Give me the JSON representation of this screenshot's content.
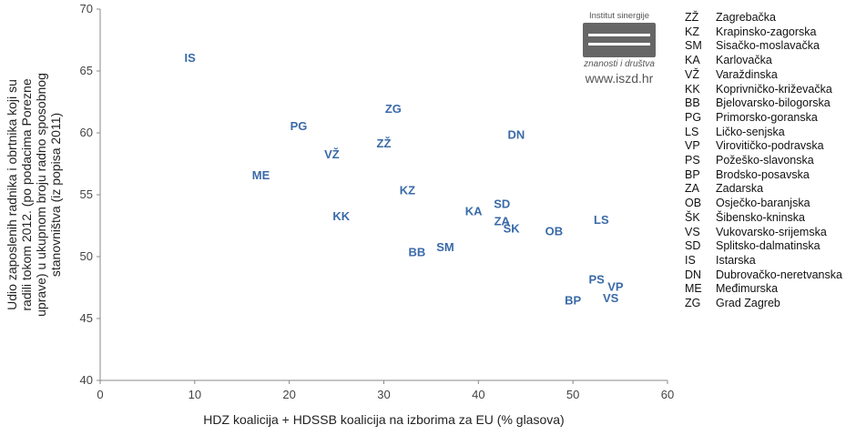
{
  "chart_data": {
    "type": "scatter",
    "xlabel": "HDZ koalicija + HDSSB koalicija na izborima za EU (% glasova)",
    "ylabel": "Udio zaposlenih radnika i obrtnika koji su radili tokom 2012. (po podacima Porezne uprave) u ukupnom broju radno sposobnog stanovništva (iz popisa 2011)",
    "xlim": [
      0,
      60
    ],
    "ylim": [
      40,
      70
    ],
    "xticks": [
      0,
      10,
      20,
      30,
      40,
      50,
      60
    ],
    "yticks": [
      40,
      45,
      50,
      55,
      60,
      65,
      70
    ],
    "grid": false,
    "color": "#3a6aa8",
    "points": [
      {
        "label": "IS",
        "x": 9.5,
        "y": 66.1
      },
      {
        "label": "PG",
        "x": 21.0,
        "y": 60.6
      },
      {
        "label": "ME",
        "x": 17.0,
        "y": 56.6
      },
      {
        "label": "VŽ",
        "x": 24.5,
        "y": 58.3
      },
      {
        "label": "ZG",
        "x": 31.0,
        "y": 62.0
      },
      {
        "label": "ZŽ",
        "x": 30.0,
        "y": 59.2
      },
      {
        "label": "KK",
        "x": 25.5,
        "y": 53.3
      },
      {
        "label": "KZ",
        "x": 32.5,
        "y": 55.4
      },
      {
        "label": "BB",
        "x": 33.5,
        "y": 50.4
      },
      {
        "label": "SM",
        "x": 36.5,
        "y": 50.8
      },
      {
        "label": "KA",
        "x": 39.5,
        "y": 53.7
      },
      {
        "label": "SD",
        "x": 42.5,
        "y": 54.3
      },
      {
        "label": "ZA",
        "x": 42.5,
        "y": 52.9
      },
      {
        "label": "ŠK",
        "x": 43.5,
        "y": 52.3
      },
      {
        "label": "DN",
        "x": 44.0,
        "y": 59.9
      },
      {
        "label": "OB",
        "x": 48.0,
        "y": 52.1
      },
      {
        "label": "LS",
        "x": 53.0,
        "y": 53.0
      },
      {
        "label": "PS",
        "x": 52.5,
        "y": 48.2
      },
      {
        "label": "VP",
        "x": 54.5,
        "y": 47.6
      },
      {
        "label": "BP",
        "x": 50.0,
        "y": 46.5
      },
      {
        "label": "VS",
        "x": 54.0,
        "y": 46.7
      }
    ]
  },
  "legend": [
    {
      "code": "ZŽ",
      "name": "Zagrebačka"
    },
    {
      "code": "KZ",
      "name": "Krapinsko-zagorska"
    },
    {
      "code": "SM",
      "name": "Sisačko-moslavačka"
    },
    {
      "code": "KA",
      "name": "Karlovačka"
    },
    {
      "code": "VŽ",
      "name": "Varaždinska"
    },
    {
      "code": "KK",
      "name": "Koprivničko-križevačka"
    },
    {
      "code": "BB",
      "name": "Bjelovarsko-bilogorska"
    },
    {
      "code": "PG",
      "name": "Primorsko-goranska"
    },
    {
      "code": "LS",
      "name": "Ličko-senjska"
    },
    {
      "code": "VP",
      "name": "Virovitičko-podravska"
    },
    {
      "code": "PS",
      "name": "Požeško-slavonska"
    },
    {
      "code": "BP",
      "name": "Brodsko-posavska"
    },
    {
      "code": "ZA",
      "name": "Zadarska"
    },
    {
      "code": "OB",
      "name": "Osječko-baranjska"
    },
    {
      "code": "ŠK",
      "name": "Šibensko-kninska"
    },
    {
      "code": "VS",
      "name": "Vukovarsko-srijemska"
    },
    {
      "code": "SD",
      "name": "Splitsko-dalmatinska"
    },
    {
      "code": "IS",
      "name": "Istarska"
    },
    {
      "code": "DN",
      "name": "Dubrovačko-neretvanska"
    },
    {
      "code": "ME",
      "name": "Međimurska"
    },
    {
      "code": "ZG",
      "name": "Grad Zagreb"
    }
  ],
  "logo": {
    "top_text": "Institut sinergije",
    "sub_text": "znanosti i društva",
    "url": "www.iszd.hr"
  }
}
